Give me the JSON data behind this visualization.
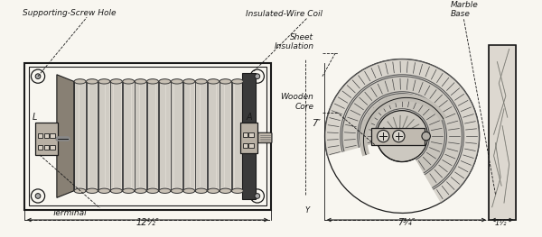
{
  "bg_color": "#f8f6f0",
  "line_color": "#1a1a1a",
  "coil_fill": "#e8e4dc",
  "coil_dark": "#b0a898",
  "coil_mid": "#d0c8bc",
  "marble_fill": "#e8e4dc",
  "terminal_fill": "#c8c0b4",
  "labels": {
    "supporting_screw_hole": "Supporting-Screw Hole",
    "insulated_wire_coil": "Insulated-Wire Coil",
    "sheet_insulation": "Sheet\nInsulation",
    "wooden_core": "Wooden\nCore",
    "marble_base": "Marble\nBase",
    "terminal": "Terminal",
    "L": "L",
    "A": "A",
    "dim_1": "12½″",
    "dim_2": "7¾″",
    "dim_3": "1½″",
    "dim_4": "7″"
  },
  "figsize": [
    6.0,
    2.63
  ],
  "dpi": 100
}
